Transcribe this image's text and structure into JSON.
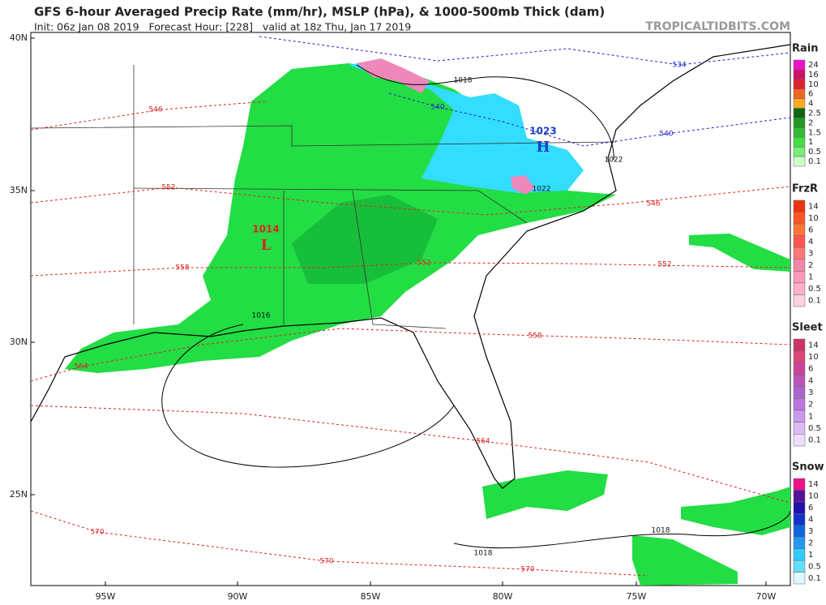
{
  "header": {
    "title": "GFS 6-hour Averaged Precip Rate (mm/hr), MSLP (hPa), & 1000-500mb Thick (dam)",
    "subtitle": "Init: 06z Jan 08 2019   Forecast Hour: [228]   valid at 18z Thu, Jan 17 2019",
    "brand": "TROPICALTIDBITS.COM"
  },
  "map": {
    "lat_labels": [
      "40N",
      "35N",
      "30N",
      "25N"
    ],
    "lon_labels": [
      "95W",
      "90W",
      "85W",
      "80W",
      "75W",
      "70W"
    ],
    "thickness_labels": [
      546,
      552,
      558,
      564,
      570,
      546,
      552,
      552,
      558,
      564,
      570,
      570,
      534,
      540,
      540
    ],
    "pressure_labels": [
      1018,
      1022,
      1022,
      1016,
      1018,
      1018
    ],
    "centers": [
      {
        "value": 1023,
        "letter": "H"
      },
      {
        "value": 1014,
        "letter": "L"
      }
    ]
  },
  "legend": {
    "sections": [
      {
        "title": "Rain",
        "levels": [
          24,
          16,
          10,
          6,
          4,
          2.5,
          2,
          1.5,
          1,
          0.5,
          0.1
        ]
      },
      {
        "title": "FrzR",
        "levels": [
          14,
          10,
          6,
          4,
          3,
          2,
          1,
          0.5,
          0.1
        ]
      },
      {
        "title": "Sleet",
        "levels": [
          14,
          10,
          6,
          4,
          3,
          2,
          1,
          0.5,
          0.1
        ]
      },
      {
        "title": "Snow",
        "levels": [
          14,
          10,
          6,
          4,
          3,
          2,
          1,
          0.5,
          0.1
        ]
      }
    ]
  }
}
